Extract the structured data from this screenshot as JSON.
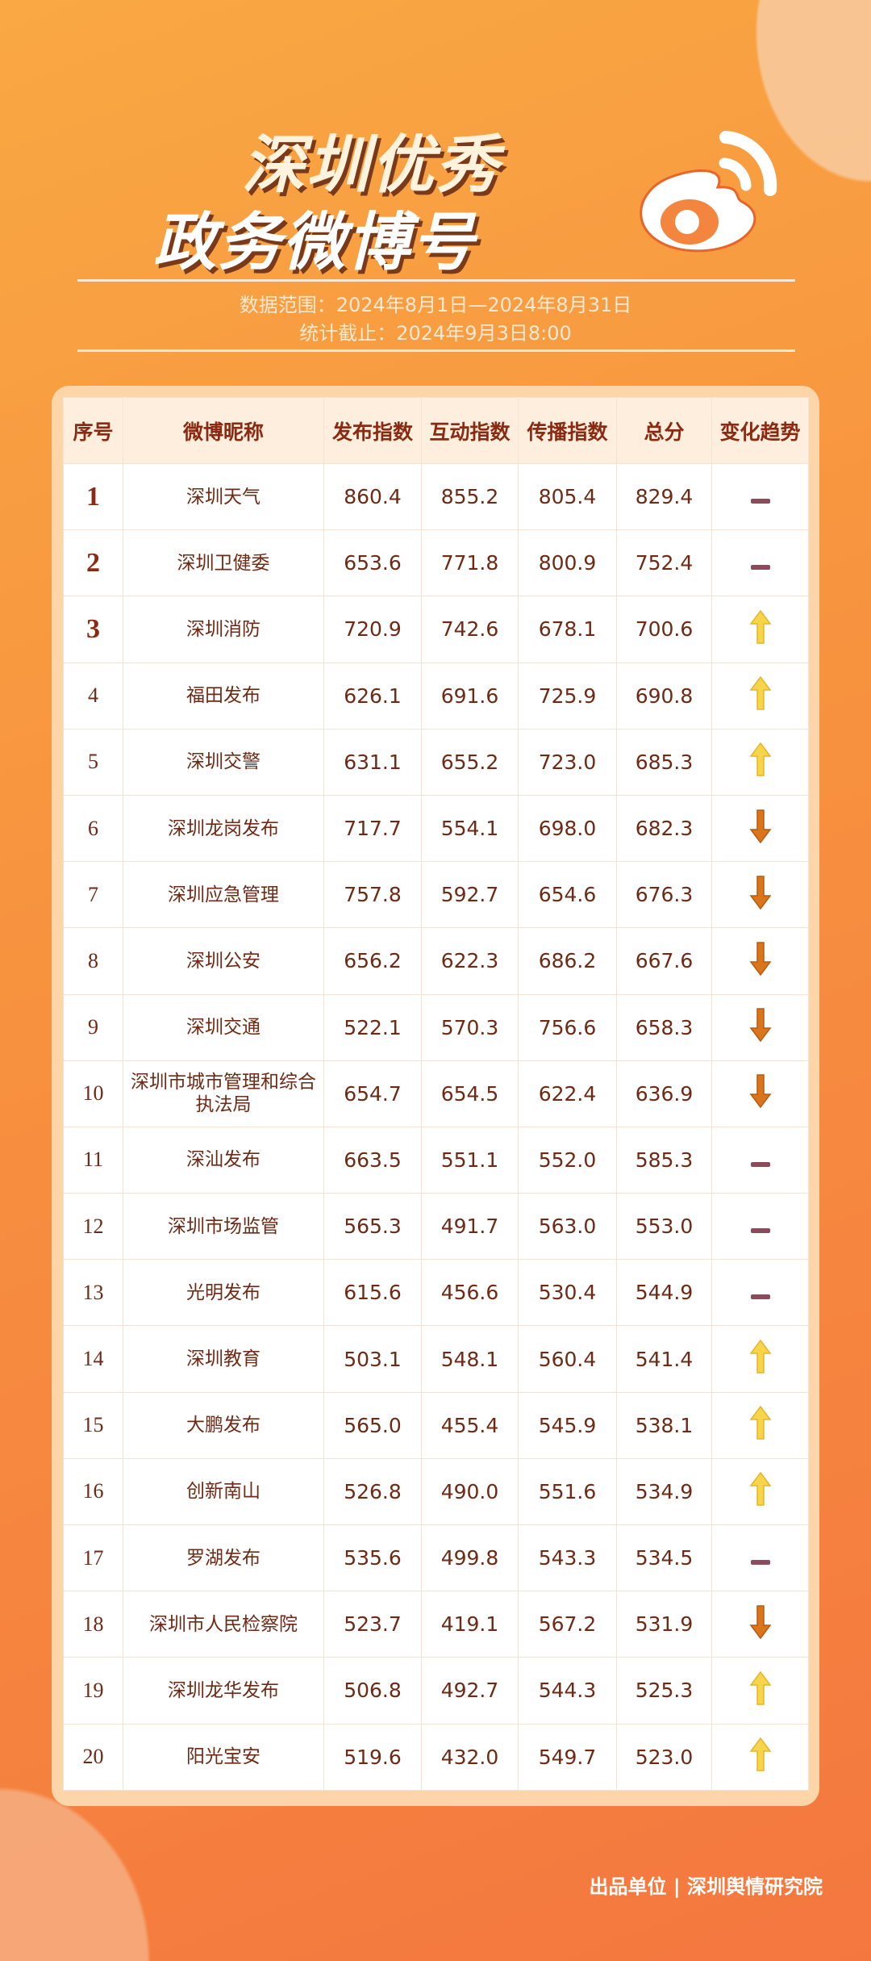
{
  "header": {
    "title_line1": "深圳优秀",
    "title_line2": "政务微博号",
    "data_range": "数据范围：2024年8月1日—2024年8月31日",
    "cutoff": "统计截止：2024年9月3日8:00",
    "logo_icon": "weibo-logo-icon"
  },
  "table": {
    "columns": [
      "序号",
      "微博昵称",
      "发布指数",
      "互动指数",
      "传播指数",
      "总分",
      "变化趋势"
    ],
    "rows": [
      {
        "rank": "1",
        "name": "深圳天气",
        "publish": "860.4",
        "interact": "855.2",
        "spread": "805.4",
        "total": "829.4",
        "trend": "flat"
      },
      {
        "rank": "2",
        "name": "深圳卫健委",
        "publish": "653.6",
        "interact": "771.8",
        "spread": "800.9",
        "total": "752.4",
        "trend": "flat"
      },
      {
        "rank": "3",
        "name": "深圳消防",
        "publish": "720.9",
        "interact": "742.6",
        "spread": "678.1",
        "total": "700.6",
        "trend": "up"
      },
      {
        "rank": "4",
        "name": "福田发布",
        "publish": "626.1",
        "interact": "691.6",
        "spread": "725.9",
        "total": "690.8",
        "trend": "up"
      },
      {
        "rank": "5",
        "name": "深圳交警",
        "publish": "631.1",
        "interact": "655.2",
        "spread": "723.0",
        "total": "685.3",
        "trend": "up"
      },
      {
        "rank": "6",
        "name": "深圳龙岗发布",
        "publish": "717.7",
        "interact": "554.1",
        "spread": "698.0",
        "total": "682.3",
        "trend": "down"
      },
      {
        "rank": "7",
        "name": "深圳应急管理",
        "publish": "757.8",
        "interact": "592.7",
        "spread": "654.6",
        "total": "676.3",
        "trend": "down"
      },
      {
        "rank": "8",
        "name": "深圳公安",
        "publish": "656.2",
        "interact": "622.3",
        "spread": "686.2",
        "total": "667.6",
        "trend": "down"
      },
      {
        "rank": "9",
        "name": "深圳交通",
        "publish": "522.1",
        "interact": "570.3",
        "spread": "756.6",
        "total": "658.3",
        "trend": "down"
      },
      {
        "rank": "10",
        "name": "深圳市城市管理和综合执法局",
        "publish": "654.7",
        "interact": "654.5",
        "spread": "622.4",
        "total": "636.9",
        "trend": "down"
      },
      {
        "rank": "11",
        "name": "深汕发布",
        "publish": "663.5",
        "interact": "551.1",
        "spread": "552.0",
        "total": "585.3",
        "trend": "flat"
      },
      {
        "rank": "12",
        "name": "深圳市场监管",
        "publish": "565.3",
        "interact": "491.7",
        "spread": "563.0",
        "total": "553.0",
        "trend": "flat"
      },
      {
        "rank": "13",
        "name": "光明发布",
        "publish": "615.6",
        "interact": "456.6",
        "spread": "530.4",
        "total": "544.9",
        "trend": "flat"
      },
      {
        "rank": "14",
        "name": "深圳教育",
        "publish": "503.1",
        "interact": "548.1",
        "spread": "560.4",
        "total": "541.4",
        "trend": "up"
      },
      {
        "rank": "15",
        "name": "大鹏发布",
        "publish": "565.0",
        "interact": "455.4",
        "spread": "545.9",
        "total": "538.1",
        "trend": "up"
      },
      {
        "rank": "16",
        "name": "创新南山",
        "publish": "526.8",
        "interact": "490.0",
        "spread": "551.6",
        "total": "534.9",
        "trend": "up"
      },
      {
        "rank": "17",
        "name": "罗湖发布",
        "publish": "535.6",
        "interact": "499.8",
        "spread": "543.3",
        "total": "534.5",
        "trend": "flat"
      },
      {
        "rank": "18",
        "name": "深圳市人民检察院",
        "publish": "523.7",
        "interact": "419.1",
        "spread": "567.2",
        "total": "531.9",
        "trend": "down"
      },
      {
        "rank": "19",
        "name": "深圳龙华发布",
        "publish": "506.8",
        "interact": "492.7",
        "spread": "544.3",
        "total": "525.3",
        "trend": "up"
      },
      {
        "rank": "20",
        "name": "阳光宝安",
        "publish": "519.6",
        "interact": "432.0",
        "spread": "549.7",
        "total": "523.0",
        "trend": "up"
      }
    ]
  },
  "colors": {
    "up": "#f7d54a",
    "down": "#d9761c",
    "flat": "#8a4b5a"
  },
  "footer": "出品单位 | 深圳舆情研究院"
}
